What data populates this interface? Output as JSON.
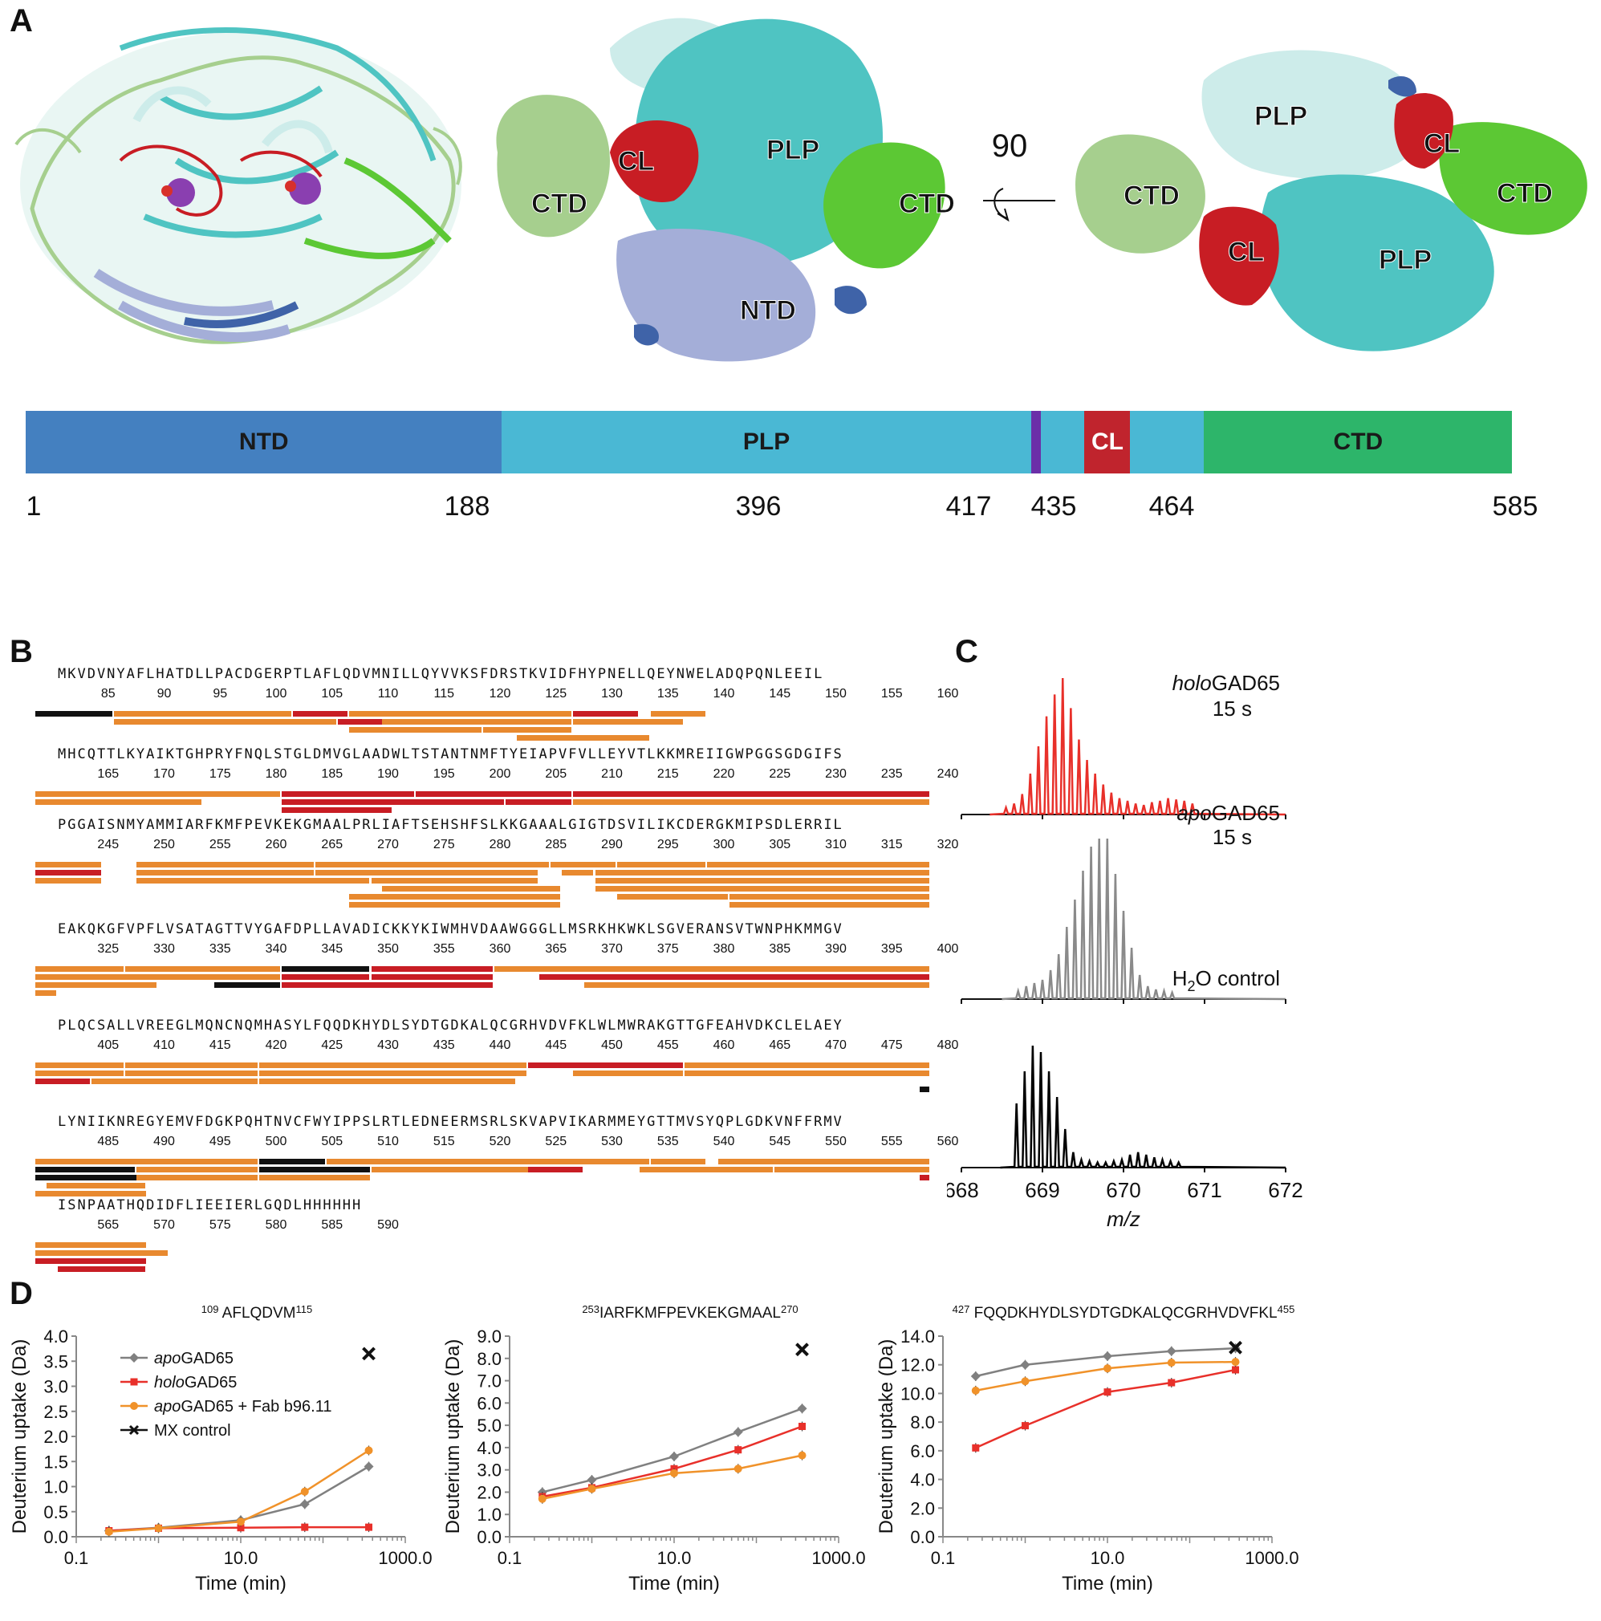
{
  "panel_labels": {
    "A": "A",
    "B": "B",
    "C": "C",
    "D": "D"
  },
  "panelA": {
    "rotation_label": "90",
    "view2_labels": [
      "CL",
      "PLP",
      "CTD",
      "CTD",
      "NTD"
    ],
    "view3_labels": [
      "PLP",
      "CL",
      "CTD",
      "CTD",
      "CL",
      "PLP"
    ],
    "domains": [
      {
        "name": "NTD",
        "start": 1,
        "end": 188,
        "color": "#4480c0"
      },
      {
        "name": "PLP",
        "start": 188,
        "end": 396,
        "color": "#4ab8d4"
      },
      {
        "name": "",
        "start": 396,
        "end": 400,
        "color": "#6b2fa8"
      },
      {
        "name": "",
        "start": 400,
        "end": 417,
        "color": "#4ab8d4"
      },
      {
        "name": "CL",
        "start": 417,
        "end": 435,
        "color": "#c0242d"
      },
      {
        "name": "",
        "start": 435,
        "end": 464,
        "color": "#4ab8d4"
      },
      {
        "name": "CTD",
        "start": 464,
        "end": 585,
        "color": "#2db56a"
      }
    ],
    "positions": [
      "1",
      "188",
      "396",
      "417",
      "435",
      "464",
      "585"
    ]
  },
  "panelB": {
    "rows": [
      {
        "seq": "MKVDVNYAFLHATDLLPACDGERPTLAFLQDVMNILLQYVVKSFDRSTKVIDFHYPNELLQEYNWELADQPQNLEEIL",
        "nums": [
          "85",
          "90",
          "95",
          "100",
          "105",
          "110",
          "115",
          "120",
          "125",
          "130",
          "135",
          "140",
          "145",
          "150",
          "155",
          "160"
        ]
      },
      {
        "seq": "MHCQTTLKYAIKTGHPRYFNQLSTGLDMVGLAADWLTSTANTNMFTYEIAPVFVLLEYVTLKKMREIIGWPGGSGDGIFS",
        "nums": [
          "165",
          "170",
          "175",
          "180",
          "185",
          "190",
          "195",
          "200",
          "205",
          "210",
          "215",
          "220",
          "225",
          "230",
          "235",
          "240"
        ]
      },
      {
        "seq": "PGGAISNMYAMMIARFKMFPEVKEKGMAALPRLIAFTSEHSHFSLKKGAAALGIGTDSVILIKCDERGKMIPSDLERRIL",
        "nums": [
          "245",
          "250",
          "255",
          "260",
          "265",
          "270",
          "275",
          "280",
          "285",
          "290",
          "295",
          "300",
          "305",
          "310",
          "315",
          "320"
        ]
      },
      {
        "seq": "EAKQKGFVPFLVSATAGTTVYGAFDPLLAVADICKKYKIWMHVDAAWGGGLLMSRKHKWKLSGVERANSVTWNPHKMMGV",
        "nums": [
          "325",
          "330",
          "335",
          "340",
          "345",
          "350",
          "355",
          "360",
          "365",
          "370",
          "375",
          "380",
          "385",
          "390",
          "395",
          "400"
        ]
      },
      {
        "seq": "PLQCSALLVREEGLMQNCNQMHASYLFQQDKHYDLSYDTGDKALQCGRHVDVFKLWLMWRAKGTTGFEAHVDKCLELAEY",
        "nums": [
          "405",
          "410",
          "415",
          "420",
          "425",
          "430",
          "435",
          "440",
          "445",
          "450",
          "455",
          "460",
          "465",
          "470",
          "475",
          "480"
        ]
      },
      {
        "seq": "LYNIIKNREGYEMVFDGKPQHTNVCFWYIPPSLRTLEDNEERMSRLSKVAPVIKARMMEYGTTMVSYQPLGDKVNFFRMV",
        "nums": [
          "485",
          "490",
          "495",
          "500",
          "505",
          "510",
          "515",
          "520",
          "525",
          "530",
          "535",
          "540",
          "545",
          "550",
          "555",
          "560"
        ]
      },
      {
        "seq": "ISNPAATHQDIDFLIEEIERLGQDLHHHHHH",
        "nums": [
          "565",
          "570",
          "575",
          "580",
          "585",
          "590"
        ]
      }
    ]
  },
  "panelC": {
    "spectra": [
      {
        "label_italic": "holo",
        "label_rest": "GAD65",
        "time": "15 s",
        "color": "#e8302a"
      },
      {
        "label_italic": "apo",
        "label_rest": "GAD65",
        "time": "15 s",
        "color": "#8a8a8a"
      },
      {
        "label_plain": "H",
        "label_sub": "2",
        "label_rest": "O control",
        "color": "#000000"
      }
    ],
    "x_ticks": [
      "668",
      "669",
      "670",
      "671",
      "672"
    ],
    "x_label": "m/z"
  },
  "chart_data": [
    {
      "type": "line",
      "title": "109 AFLQDVM115",
      "title_pre": "109",
      "title_seq": " AFLQDVM",
      "title_post": "115",
      "xlabel": "Time (min)",
      "ylabel": "Deuterium uptake (Da)",
      "xscale": "log",
      "xlim": [
        0.1,
        1000
      ],
      "ylim": [
        0,
        4
      ],
      "x_ticks": [
        "0.1",
        "10.0",
        "1000.0"
      ],
      "y_ticks": [
        "0.0",
        "0.5",
        "1.0",
        "1.5",
        "2.0",
        "2.5",
        "3.0",
        "3.5",
        "4.0"
      ],
      "x": [
        0.25,
        1,
        10,
        60,
        360
      ],
      "series": [
        {
          "name": "apoGAD65",
          "name_italic": "apo",
          "name_rest": "GAD65",
          "color": "#808080",
          "marker": "diamond",
          "values": [
            0.12,
            0.18,
            0.33,
            0.65,
            1.4
          ]
        },
        {
          "name": "holoGAD65",
          "name_italic": "holo",
          "name_rest": "GAD65",
          "color": "#e8302a",
          "marker": "square",
          "values": [
            0.12,
            0.17,
            0.18,
            0.19,
            0.19
          ]
        },
        {
          "name": "apoGAD65 + Fab b96.11",
          "name_italic": "apo",
          "name_rest": "GAD65 + Fab b96.11",
          "color": "#f0922a",
          "marker": "circle",
          "values": [
            0.1,
            0.17,
            0.3,
            0.9,
            1.72
          ]
        }
      ],
      "mx_control": {
        "name": "MX control",
        "x": 360,
        "y": 3.65
      },
      "legend": "top-left"
    },
    {
      "type": "line",
      "title": "253IARFKMFPEVKEKGMAAL270",
      "title_pre": "253",
      "title_seq": "IARFKMFPEVKEKGMAAL",
      "title_post": "270",
      "xlabel": "Time (min)",
      "ylabel": "Deuterium uptake (Da)",
      "xscale": "log",
      "xlim": [
        0.1,
        1000
      ],
      "ylim": [
        0,
        9
      ],
      "x_ticks": [
        "0.1",
        "10.0",
        "1000.0"
      ],
      "y_ticks": [
        "0.0",
        "1.0",
        "2.0",
        "3.0",
        "4.0",
        "5.0",
        "6.0",
        "7.0",
        "8.0",
        "9.0"
      ],
      "x": [
        0.25,
        1,
        10,
        60,
        360
      ],
      "series": [
        {
          "name": "apoGAD65",
          "color": "#808080",
          "marker": "diamond",
          "values": [
            2.0,
            2.55,
            3.6,
            4.7,
            5.75
          ]
        },
        {
          "name": "holoGAD65",
          "color": "#e8302a",
          "marker": "square",
          "values": [
            1.8,
            2.2,
            3.05,
            3.9,
            4.95
          ]
        },
        {
          "name": "apoGAD65 + Fab b96.11",
          "color": "#f0922a",
          "marker": "circle",
          "values": [
            1.7,
            2.15,
            2.85,
            3.05,
            3.65
          ]
        }
      ],
      "mx_control": {
        "name": "MX control",
        "x": 360,
        "y": 8.4
      }
    },
    {
      "type": "line",
      "title": "427 FQQDKHYDLSYDTGDKALQCGRHVDVFKL455",
      "title_pre": "427",
      "title_seq": " FQQDKHYDLSYDTGDKALQCGRHVDVFKL",
      "title_post": "455",
      "xlabel": "Time (min)",
      "ylabel": "Deuterium uptake (Da)",
      "xscale": "log",
      "xlim": [
        0.1,
        1000
      ],
      "ylim": [
        0,
        14
      ],
      "x_ticks": [
        "0.1",
        "10.0",
        "1000.0"
      ],
      "y_ticks": [
        "0.0",
        "2.0",
        "4.0",
        "6.0",
        "8.0",
        "10.0",
        "12.0",
        "14.0"
      ],
      "x": [
        0.25,
        1,
        10,
        60,
        360
      ],
      "series": [
        {
          "name": "apoGAD65",
          "color": "#808080",
          "marker": "diamond",
          "values": [
            11.2,
            12.0,
            12.6,
            12.95,
            13.15
          ]
        },
        {
          "name": "holoGAD65",
          "color": "#e8302a",
          "marker": "square",
          "values": [
            6.2,
            7.75,
            10.1,
            10.75,
            11.65
          ]
        },
        {
          "name": "apoGAD65 + Fab b96.11",
          "color": "#f0922a",
          "marker": "circle",
          "values": [
            10.2,
            10.85,
            11.75,
            12.15,
            12.2
          ]
        }
      ],
      "mx_control": {
        "name": "MX control",
        "x": 360,
        "y": 13.2
      }
    }
  ],
  "colors": {
    "teal": "#4fc4c2",
    "light_teal": "#cdecea",
    "green": "#5cc834",
    "light_green": "#a6cf8e",
    "red": "#c81d24",
    "lavender": "#a4aed8",
    "blue": "#3f63a8",
    "orange": "#e8892f",
    "black": "#111111"
  }
}
